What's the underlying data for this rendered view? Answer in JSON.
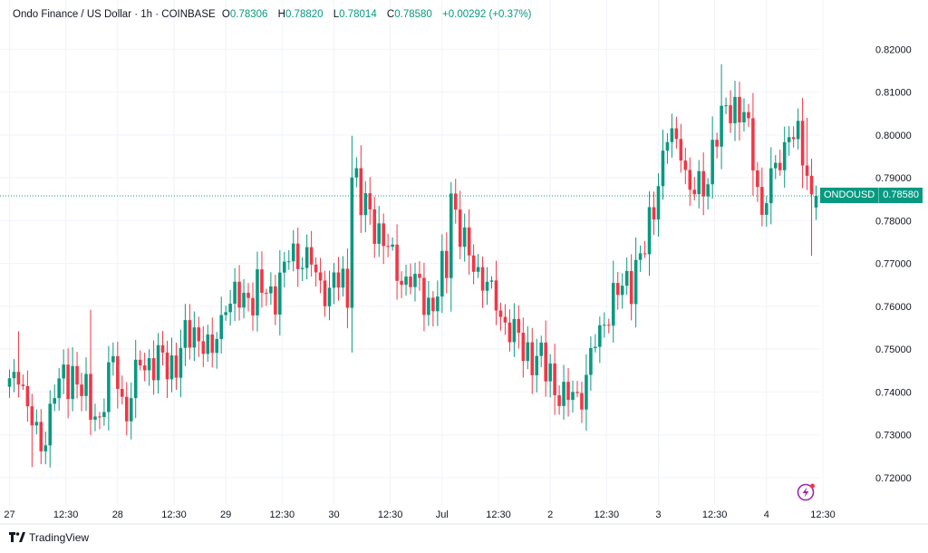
{
  "header": {
    "symbol": "Ondo Finance / US Dollar · 1h · COINBASE",
    "o_label": "O",
    "o": "0.78306",
    "h_label": "H",
    "h": "0.78820",
    "l_label": "L",
    "l": "0.78014",
    "c_label": "C",
    "c": "0.78580",
    "change": "+0.00292 (+0.37%)"
  },
  "price_tag": {
    "symbol": "ONDOUSD",
    "price": "0.78580"
  },
  "footer": {
    "brand": "TradingView",
    "logo": "tradingview-logo"
  },
  "colors": {
    "up": "#089981",
    "down": "#f23645",
    "grid": "#f0f3fa",
    "text": "#131722"
  },
  "chart_data": {
    "type": "candlestick",
    "title": "Ondo Finance / US Dollar · 1h · COINBASE",
    "interval": "1h",
    "ylim": [
      0.7145,
      0.8245
    ],
    "y_ticks": [
      "0.82000",
      "0.81000",
      "0.80000",
      "0.79000",
      "0.78000",
      "0.77000",
      "0.76000",
      "0.75000",
      "0.74000",
      "0.73000",
      "0.72000"
    ],
    "x_ticks": [
      {
        "label": "27",
        "index": 0
      },
      {
        "label": "12:30",
        "index": 12.5
      },
      {
        "label": "28",
        "index": 24
      },
      {
        "label": "12:30",
        "index": 36.5
      },
      {
        "label": "29",
        "index": 48
      },
      {
        "label": "12:30",
        "index": 60.5
      },
      {
        "label": "30",
        "index": 72
      },
      {
        "label": "12:30",
        "index": 84.5
      },
      {
        "label": "Jul",
        "index": 96
      },
      {
        "label": "12:30",
        "index": 108.5
      },
      {
        "label": "2",
        "index": 120
      },
      {
        "label": "12:30",
        "index": 132.5
      },
      {
        "label": "3",
        "index": 144
      },
      {
        "label": "12:30",
        "index": 156.5
      },
      {
        "label": "4",
        "index": 168
      },
      {
        "label": "12:30",
        "index": 180.5
      }
    ],
    "last_price": 0.7858,
    "anchors": [
      [
        0,
        0.74
      ],
      [
        2,
        0.746
      ],
      [
        5,
        0.732
      ],
      [
        7,
        0.727
      ],
      [
        10,
        0.74
      ],
      [
        14,
        0.745
      ],
      [
        17,
        0.738
      ],
      [
        20,
        0.734
      ],
      [
        23,
        0.747
      ],
      [
        26,
        0.735
      ],
      [
        29,
        0.747
      ],
      [
        33,
        0.747
      ],
      [
        36,
        0.746
      ],
      [
        39,
        0.752
      ],
      [
        42,
        0.754
      ],
      [
        45,
        0.748
      ],
      [
        48,
        0.762
      ],
      [
        51,
        0.761
      ],
      [
        55,
        0.764
      ],
      [
        58,
        0.762
      ],
      [
        62,
        0.771
      ],
      [
        66,
        0.772
      ],
      [
        69,
        0.764
      ],
      [
        73,
        0.766
      ],
      [
        75,
        0.762
      ],
      [
        76,
        0.794
      ],
      [
        78,
        0.784
      ],
      [
        82,
        0.778
      ],
      [
        86,
        0.768
      ],
      [
        90,
        0.765
      ],
      [
        94,
        0.76
      ],
      [
        97,
        0.77
      ],
      [
        98,
        0.787
      ],
      [
        101,
        0.773
      ],
      [
        105,
        0.767
      ],
      [
        108,
        0.76
      ],
      [
        111,
        0.755
      ],
      [
        114,
        0.75
      ],
      [
        117,
        0.748
      ],
      [
        120,
        0.744
      ],
      [
        123,
        0.738
      ],
      [
        127,
        0.74
      ],
      [
        130,
        0.751
      ],
      [
        133,
        0.76
      ],
      [
        138,
        0.767
      ],
      [
        141,
        0.773
      ],
      [
        144,
        0.79
      ],
      [
        146,
        0.799
      ],
      [
        149,
        0.798
      ],
      [
        151,
        0.786
      ],
      [
        154,
        0.788
      ],
      [
        157,
        0.8
      ],
      [
        160,
        0.808
      ],
      [
        163,
        0.804
      ],
      [
        165,
        0.795
      ],
      [
        167,
        0.782
      ],
      [
        170,
        0.792
      ],
      [
        173,
        0.801
      ],
      [
        176,
        0.796
      ],
      [
        178,
        0.786
      ],
      [
        179,
        0.7831
      ]
    ],
    "last_candle": {
      "o": 0.78306,
      "h": 0.7882,
      "l": 0.78014,
      "c": 0.7858
    }
  }
}
